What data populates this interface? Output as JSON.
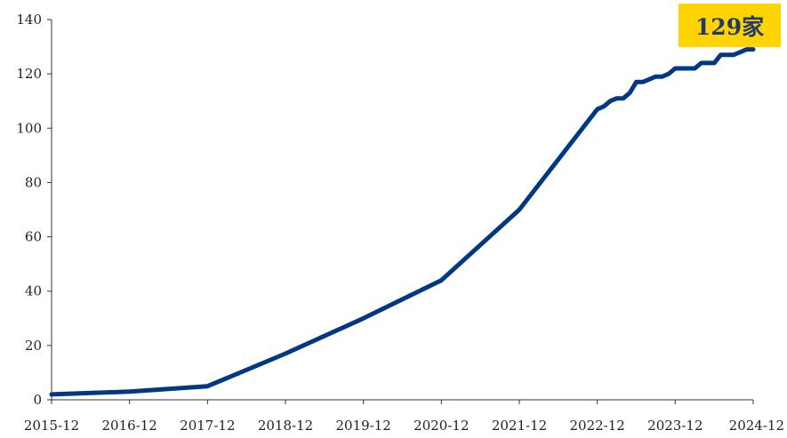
{
  "chart_data": {
    "type": "line",
    "x_ticks": [
      "2015-12",
      "2016-12",
      "2017-12",
      "2018-12",
      "2019-12",
      "2020-12",
      "2021-12",
      "2022-12",
      "2023-12",
      "2024-12"
    ],
    "y_ticks": [
      "0",
      "20",
      "40",
      "60",
      "80",
      "100",
      "120",
      "140"
    ],
    "ylim": [
      0,
      140
    ],
    "xlim": [
      "2015-12",
      "2024-12"
    ],
    "grid": false,
    "series": [
      {
        "x": [
          "2015-12",
          "2016-12",
          "2017-12",
          "2018-12",
          "2019-12",
          "2020-12",
          "2021-12",
          "2022-12",
          "2023-01",
          "2023-02",
          "2023-03",
          "2023-04",
          "2023-05",
          "2023-06",
          "2023-07",
          "2023-08",
          "2023-09",
          "2023-10",
          "2023-11",
          "2023-12",
          "2024-01",
          "2024-02",
          "2024-03",
          "2024-04",
          "2024-05",
          "2024-06",
          "2024-07",
          "2024-08",
          "2024-09",
          "2024-10",
          "2024-11",
          "2024-12"
        ],
        "values": [
          2,
          3,
          5,
          17,
          30,
          44,
          70,
          107,
          108,
          110,
          111,
          111,
          113,
          117,
          117,
          118,
          119,
          119,
          120,
          122,
          122,
          122,
          122,
          124,
          124,
          124,
          127,
          127,
          127,
          128,
          129,
          129
        ],
        "color": "#003882"
      }
    ],
    "annotation": {
      "text": "129家",
      "background": "#FFD400",
      "color": "#1F3A6B"
    }
  },
  "colors": {
    "axis": "#333333",
    "line": "#003882"
  }
}
